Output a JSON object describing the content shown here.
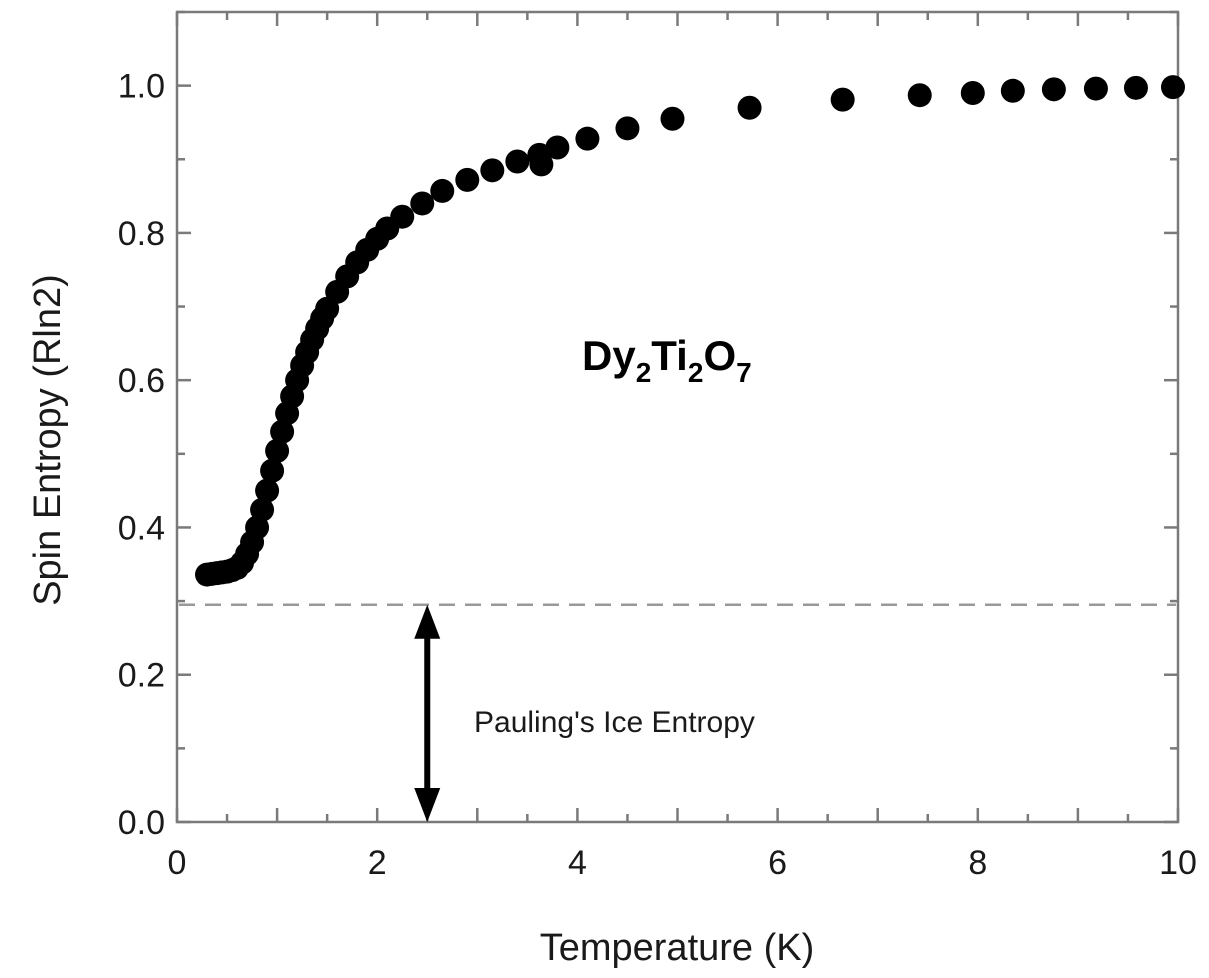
{
  "chart_data": {
    "type": "scatter",
    "xlabel": "Temperature (K)",
    "ylabel": "Spin Entropy (Rln2)",
    "xlim": [
      0,
      10
    ],
    "ylim": [
      0,
      1.1
    ],
    "x_ticks": [
      "0",
      "2",
      "4",
      "6",
      "8",
      "10"
    ],
    "y_ticks": [
      "0.0",
      "0.2",
      "0.4",
      "0.6",
      "0.8",
      "1.0"
    ],
    "grid": false,
    "marker_color": "#000000",
    "reference_line": {
      "y": 0.295,
      "style": "dashed",
      "color": "#999999"
    },
    "compound_label": {
      "base": [
        "Dy",
        "Ti",
        "O"
      ],
      "subscripts": [
        "2",
        "2",
        "7"
      ]
    },
    "annotation": {
      "text": "Pauling's Ice Entropy",
      "arrow_x": 2.5,
      "arrow_from": 0.0,
      "arrow_to": 0.295
    },
    "series": [
      {
        "x": [
          0.3,
          0.35,
          0.4,
          0.45,
          0.5,
          0.55,
          0.6,
          0.65,
          0.7,
          0.75,
          0.8,
          0.85,
          0.9,
          0.95,
          1.0,
          1.05,
          1.1,
          1.15,
          1.2,
          1.25,
          1.3,
          1.35,
          1.4,
          1.45,
          1.5,
          1.6,
          1.7,
          1.8,
          1.9,
          2.0,
          2.1,
          2.25,
          2.45,
          2.65,
          2.9,
          3.15,
          3.4,
          3.62,
          3.64,
          3.8,
          4.1,
          4.5,
          4.95,
          5.72,
          6.65,
          7.42,
          7.95,
          8.35,
          8.76,
          9.18,
          9.58,
          9.95
        ],
        "y": [
          0.336,
          0.337,
          0.338,
          0.339,
          0.34,
          0.342,
          0.345,
          0.352,
          0.364,
          0.38,
          0.4,
          0.424,
          0.45,
          0.477,
          0.504,
          0.53,
          0.555,
          0.578,
          0.6,
          0.62,
          0.638,
          0.655,
          0.67,
          0.684,
          0.697,
          0.72,
          0.741,
          0.76,
          0.777,
          0.792,
          0.806,
          0.822,
          0.84,
          0.857,
          0.872,
          0.885,
          0.897,
          0.906,
          0.893,
          0.916,
          0.928,
          0.942,
          0.955,
          0.97,
          0.981,
          0.987,
          0.99,
          0.993,
          0.995,
          0.996,
          0.997,
          0.998
        ]
      }
    ]
  }
}
